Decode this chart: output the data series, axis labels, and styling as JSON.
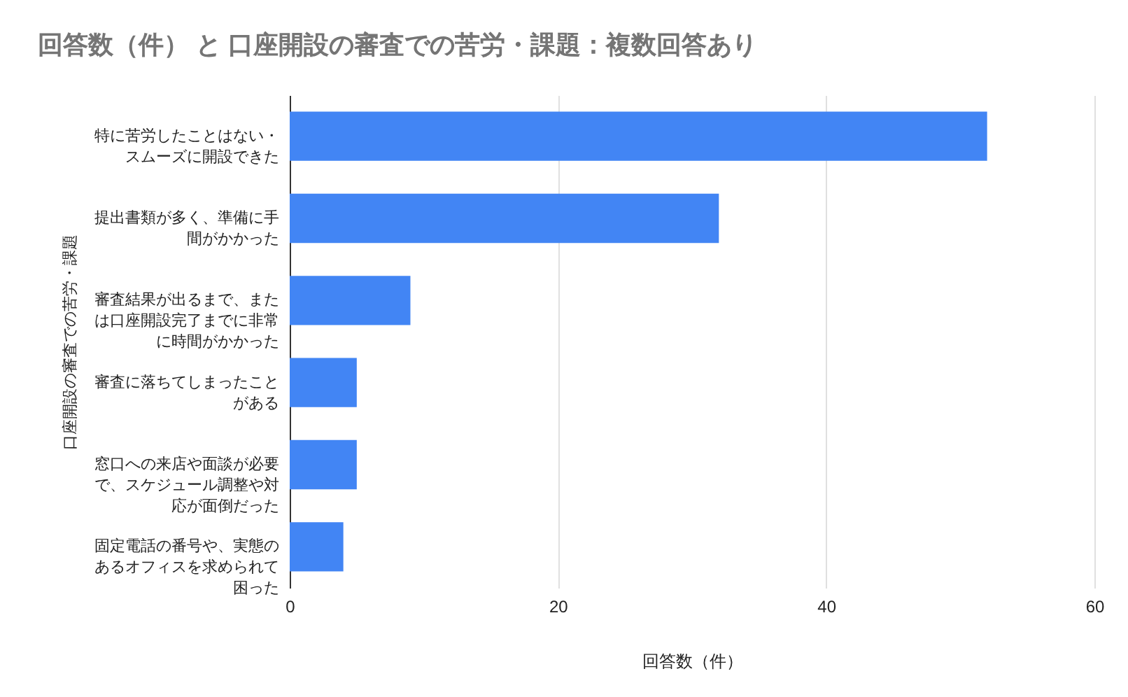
{
  "chart_data": {
    "type": "bar",
    "orientation": "horizontal",
    "title": "回答数（件） と 口座開設の審査での苦労・課題：複数回答あり",
    "xlabel": "回答数（件）",
    "ylabel": "口座開設の審査での苦労・課題",
    "categories": [
      "特に苦労したことはない・スムーズに開設できた",
      "提出書類が多く、準備に手間がかかった",
      "審査結果が出るまで、または口座開設完了までに非常に時間がかかった",
      "審査に落ちてしまったことがある",
      "窓口への来店や面談が必要で、スケジュール調整や対応が面倒だった",
      "固定電話の番号や、実態のあるオフィスを求められて困った"
    ],
    "values": [
      52,
      32,
      9,
      5,
      5,
      4
    ],
    "color": "#4285f4",
    "xlim": [
      0,
      60
    ],
    "xticks": [
      0,
      20,
      40,
      60
    ],
    "grid": "x"
  }
}
